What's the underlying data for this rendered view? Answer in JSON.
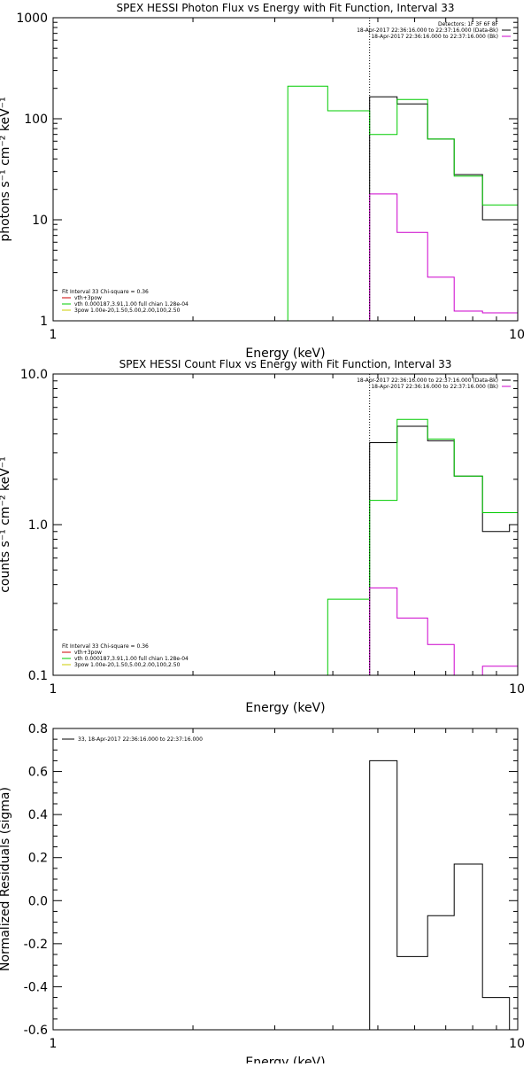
{
  "chart_data": [
    {
      "type": "line",
      "title": "SPEX HESSI Photon Flux vs Energy with Fit Function, Interval 33",
      "xlabel": "Energy (keV)",
      "ylabel": "photons s⁻¹ cm⁻² keV⁻¹",
      "xscale": "log",
      "yscale": "log",
      "xlim": [
        1,
        10
      ],
      "ylim": [
        1,
        1000
      ],
      "grid": false,
      "xticks": [
        "1",
        "10"
      ],
      "yticks": [
        "1",
        "10",
        "100",
        "1000"
      ],
      "vline_x": 4.8,
      "legend_top_right": [
        {
          "text": "Detectors: 1F 3F 6F 8F",
          "color": ""
        },
        {
          "text": "18-Apr-2017 22:36:16.000 to 22:37:16.000 (Data-Bk)",
          "color": "#000000"
        },
        {
          "text": "18-Apr-2017 22:36:16.000 to 22:37:16.000 (Bk)",
          "color": "#cc00cc"
        }
      ],
      "legend_bottom_left": [
        {
          "text": "Fit Interval 33   Chi-square = 0.36",
          "color": ""
        },
        {
          "text": "vth+3pow",
          "color": "#cc0000"
        },
        {
          "text": "vth 0.000187,3.91,1.00  full chian 1.28e-04",
          "color": "#00cc00"
        },
        {
          "text": "3pow 1.00e-20,1.50,5.00,2.00,100,2.50",
          "color": "#cccc00"
        }
      ],
      "series": [
        {
          "color": "#000000",
          "edges": [
            4.8,
            5.5,
            6.4,
            7.3,
            8.4,
            9.6,
            10
          ],
          "values": [
            165,
            140,
            63,
            28,
            10,
            10
          ]
        },
        {
          "color": "#00cc00",
          "edges": [
            3.2,
            3.9,
            4.8,
            5.5,
            6.4,
            7.3,
            8.4,
            9.6,
            10
          ],
          "values": [
            210,
            120,
            70,
            155,
            63,
            27,
            14,
            14
          ]
        },
        {
          "color": "#cc00cc",
          "edges": [
            4.8,
            5.5,
            6.4,
            7.3,
            8.4,
            9.6,
            10
          ],
          "values": [
            18,
            7.5,
            2.7,
            1.25,
            1.2,
            1.2
          ]
        }
      ]
    },
    {
      "type": "line",
      "title": "SPEX HESSI Count Flux vs Energy with Fit Function, Interval 33",
      "xlabel": "Energy (keV)",
      "ylabel": "counts s⁻¹ cm⁻² keV⁻¹",
      "xscale": "log",
      "yscale": "log",
      "xlim": [
        1,
        10
      ],
      "ylim": [
        0.1,
        10
      ],
      "grid": false,
      "xticks": [
        "1",
        "10"
      ],
      "yticks": [
        "0.1",
        "1.0",
        "10.0"
      ],
      "vline_x": 4.8,
      "legend_top_right": [
        {
          "text": "18-Apr-2017 22:36:16.000 to 22:37:16.000 (Data-Bk)",
          "color": "#000000"
        },
        {
          "text": "18-Apr-2017 22:36:16.000 to 22:37:16.000 (Bk)",
          "color": "#cc00cc"
        }
      ],
      "legend_bottom_left": [
        {
          "text": "Fit Interval 33   Chi-square = 0.36",
          "color": ""
        },
        {
          "text": "vth+3pow",
          "color": "#cc0000"
        },
        {
          "text": "vth 0.000187,3.91,1.00  full chian 1.28e-04",
          "color": "#00cc00"
        },
        {
          "text": "3pow 1.00e-20,1.50,5.00,2.00,100,2.50",
          "color": "#cccc00"
        }
      ],
      "series": [
        {
          "color": "#000000",
          "edges": [
            4.8,
            5.5,
            6.4,
            7.3,
            8.4,
            9.6,
            10
          ],
          "values": [
            3.5,
            4.5,
            3.6,
            2.1,
            0.9,
            1.0
          ]
        },
        {
          "color": "#00cc00",
          "edges": [
            3.9,
            4.8,
            5.5,
            6.4,
            7.3,
            8.4,
            9.6,
            10
          ],
          "values": [
            0.32,
            1.45,
            5.0,
            3.7,
            2.1,
            1.2,
            1.2
          ]
        },
        {
          "color": "#cc00cc",
          "edges": [
            4.8,
            5.5,
            6.4,
            7.3,
            8.4,
            9.6,
            10
          ],
          "values": [
            0.38,
            0.24,
            0.16,
            0.1,
            0.115,
            0.115
          ]
        }
      ]
    },
    {
      "type": "line",
      "title": "",
      "xlabel": "Energy (keV)",
      "ylabel": "Normalized Residuals (sigma)",
      "xscale": "log",
      "yscale": "linear",
      "xlim": [
        1,
        10
      ],
      "ylim": [
        -0.6,
        0.8
      ],
      "grid": false,
      "xticks": [
        "1",
        "10"
      ],
      "yticks": [
        "-0.6",
        "-0.4",
        "-0.2",
        "0.0",
        "0.2",
        "0.4",
        "0.6",
        "0.8"
      ],
      "legend_top_left": [
        {
          "text": "33, 18-Apr-2017 22:36:16.000 to 22:37:16.000",
          "color": "#000000"
        }
      ],
      "series": [
        {
          "color": "#000000",
          "edges": [
            4.8,
            5.5,
            6.4,
            7.3,
            8.4,
            9.6
          ],
          "values": [
            0.65,
            -0.26,
            -0.07,
            0.17,
            -0.45
          ]
        }
      ]
    }
  ]
}
